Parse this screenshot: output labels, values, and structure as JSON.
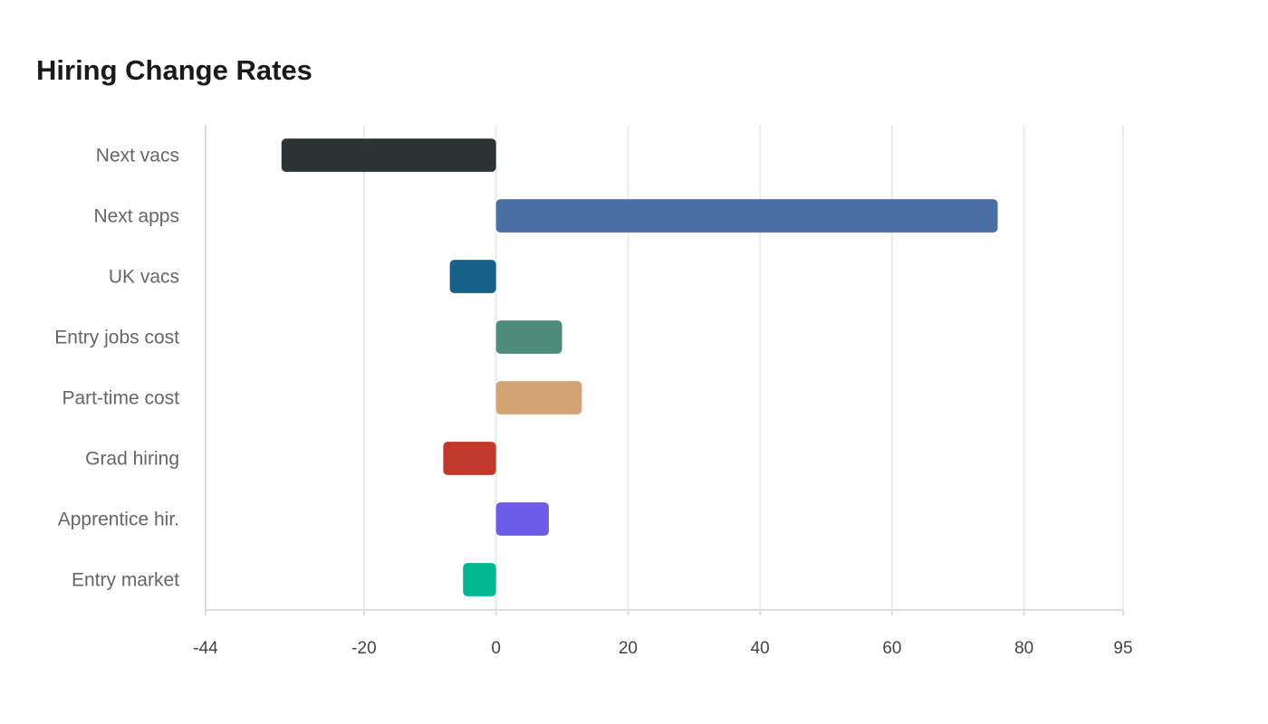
{
  "chart_data": {
    "type": "bar",
    "orientation": "horizontal",
    "title": "Hiring Change Rates",
    "xlabel": "",
    "ylabel": "",
    "xlim": [
      -44,
      95
    ],
    "x_ticks": [
      -44,
      -20,
      0,
      20,
      40,
      60,
      80,
      95
    ],
    "grid": true,
    "legend": "none",
    "categories": [
      "Next vacs",
      "Next apps",
      "UK vacs",
      "Entry jobs cost",
      "Part-time cost",
      "Grad hiring",
      "Apprentice hir.",
      "Entry market"
    ],
    "values": [
      -32.5,
      76,
      -7,
      10,
      13,
      -8,
      8,
      -5
    ],
    "colors": [
      "#2d3436",
      "#4a6fa5",
      "#176087",
      "#4d8c7a",
      "#d4a373",
      "#c0392b",
      "#6c5ce7",
      "#00b894"
    ]
  }
}
